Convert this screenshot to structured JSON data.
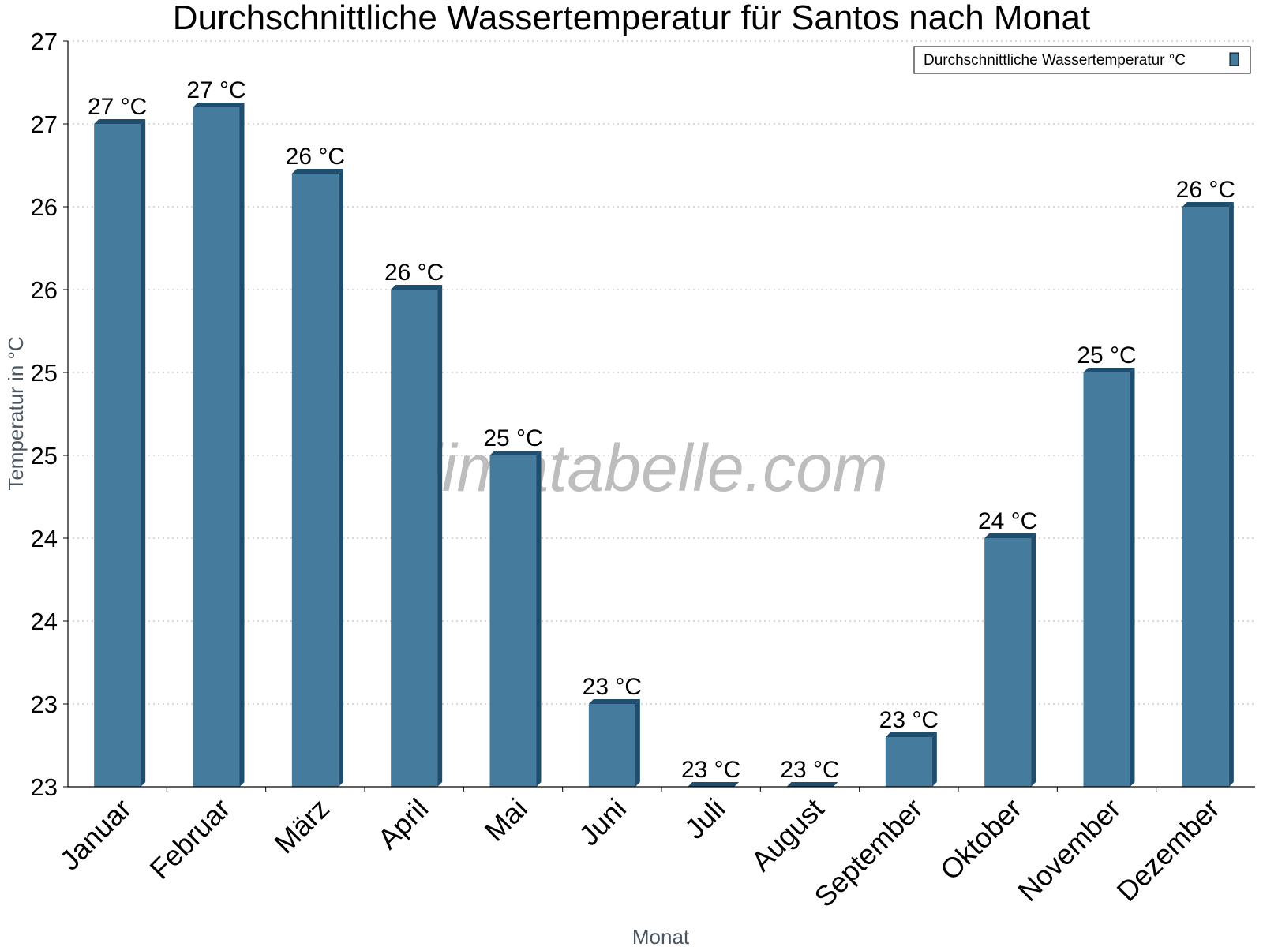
{
  "chart_data": {
    "type": "bar",
    "title": "Durchschnittliche Wassertemperatur für Santos nach Monat",
    "xlabel": "Monat",
    "ylabel": "Temperatur in °C",
    "ylim": [
      22.5,
      27.0
    ],
    "yticks": [
      22.5,
      23.0,
      23.5,
      24.0,
      24.5,
      25.0,
      25.5,
      26.0,
      26.5,
      27.0
    ],
    "ytick_labels": [
      "23",
      "23",
      "24",
      "24",
      "25",
      "25",
      "26",
      "26",
      "27",
      "27"
    ],
    "grid": true,
    "legend_position": "top-right",
    "categories": [
      "Januar",
      "Februar",
      "März",
      "April",
      "Mai",
      "Juni",
      "Juli",
      "August",
      "September",
      "Oktober",
      "November",
      "Dezember"
    ],
    "series": [
      {
        "name": "Durchschnittliche Wassertemperatur °C",
        "values": [
          26.5,
          26.6,
          26.2,
          25.5,
          24.5,
          23.0,
          22.5,
          22.5,
          22.8,
          24.0,
          25.0,
          26.0
        ],
        "labels": [
          "27 °C",
          "27 °C",
          "26 °C",
          "26 °C",
          "25 °C",
          "23 °C",
          "23 °C",
          "23 °C",
          "23 °C",
          "24 °C",
          "25 °C",
          "26 °C"
        ],
        "color": "#457b9d",
        "shade_color": "#1e4d6e"
      }
    ],
    "watermark": "klimatabelle.com"
  }
}
